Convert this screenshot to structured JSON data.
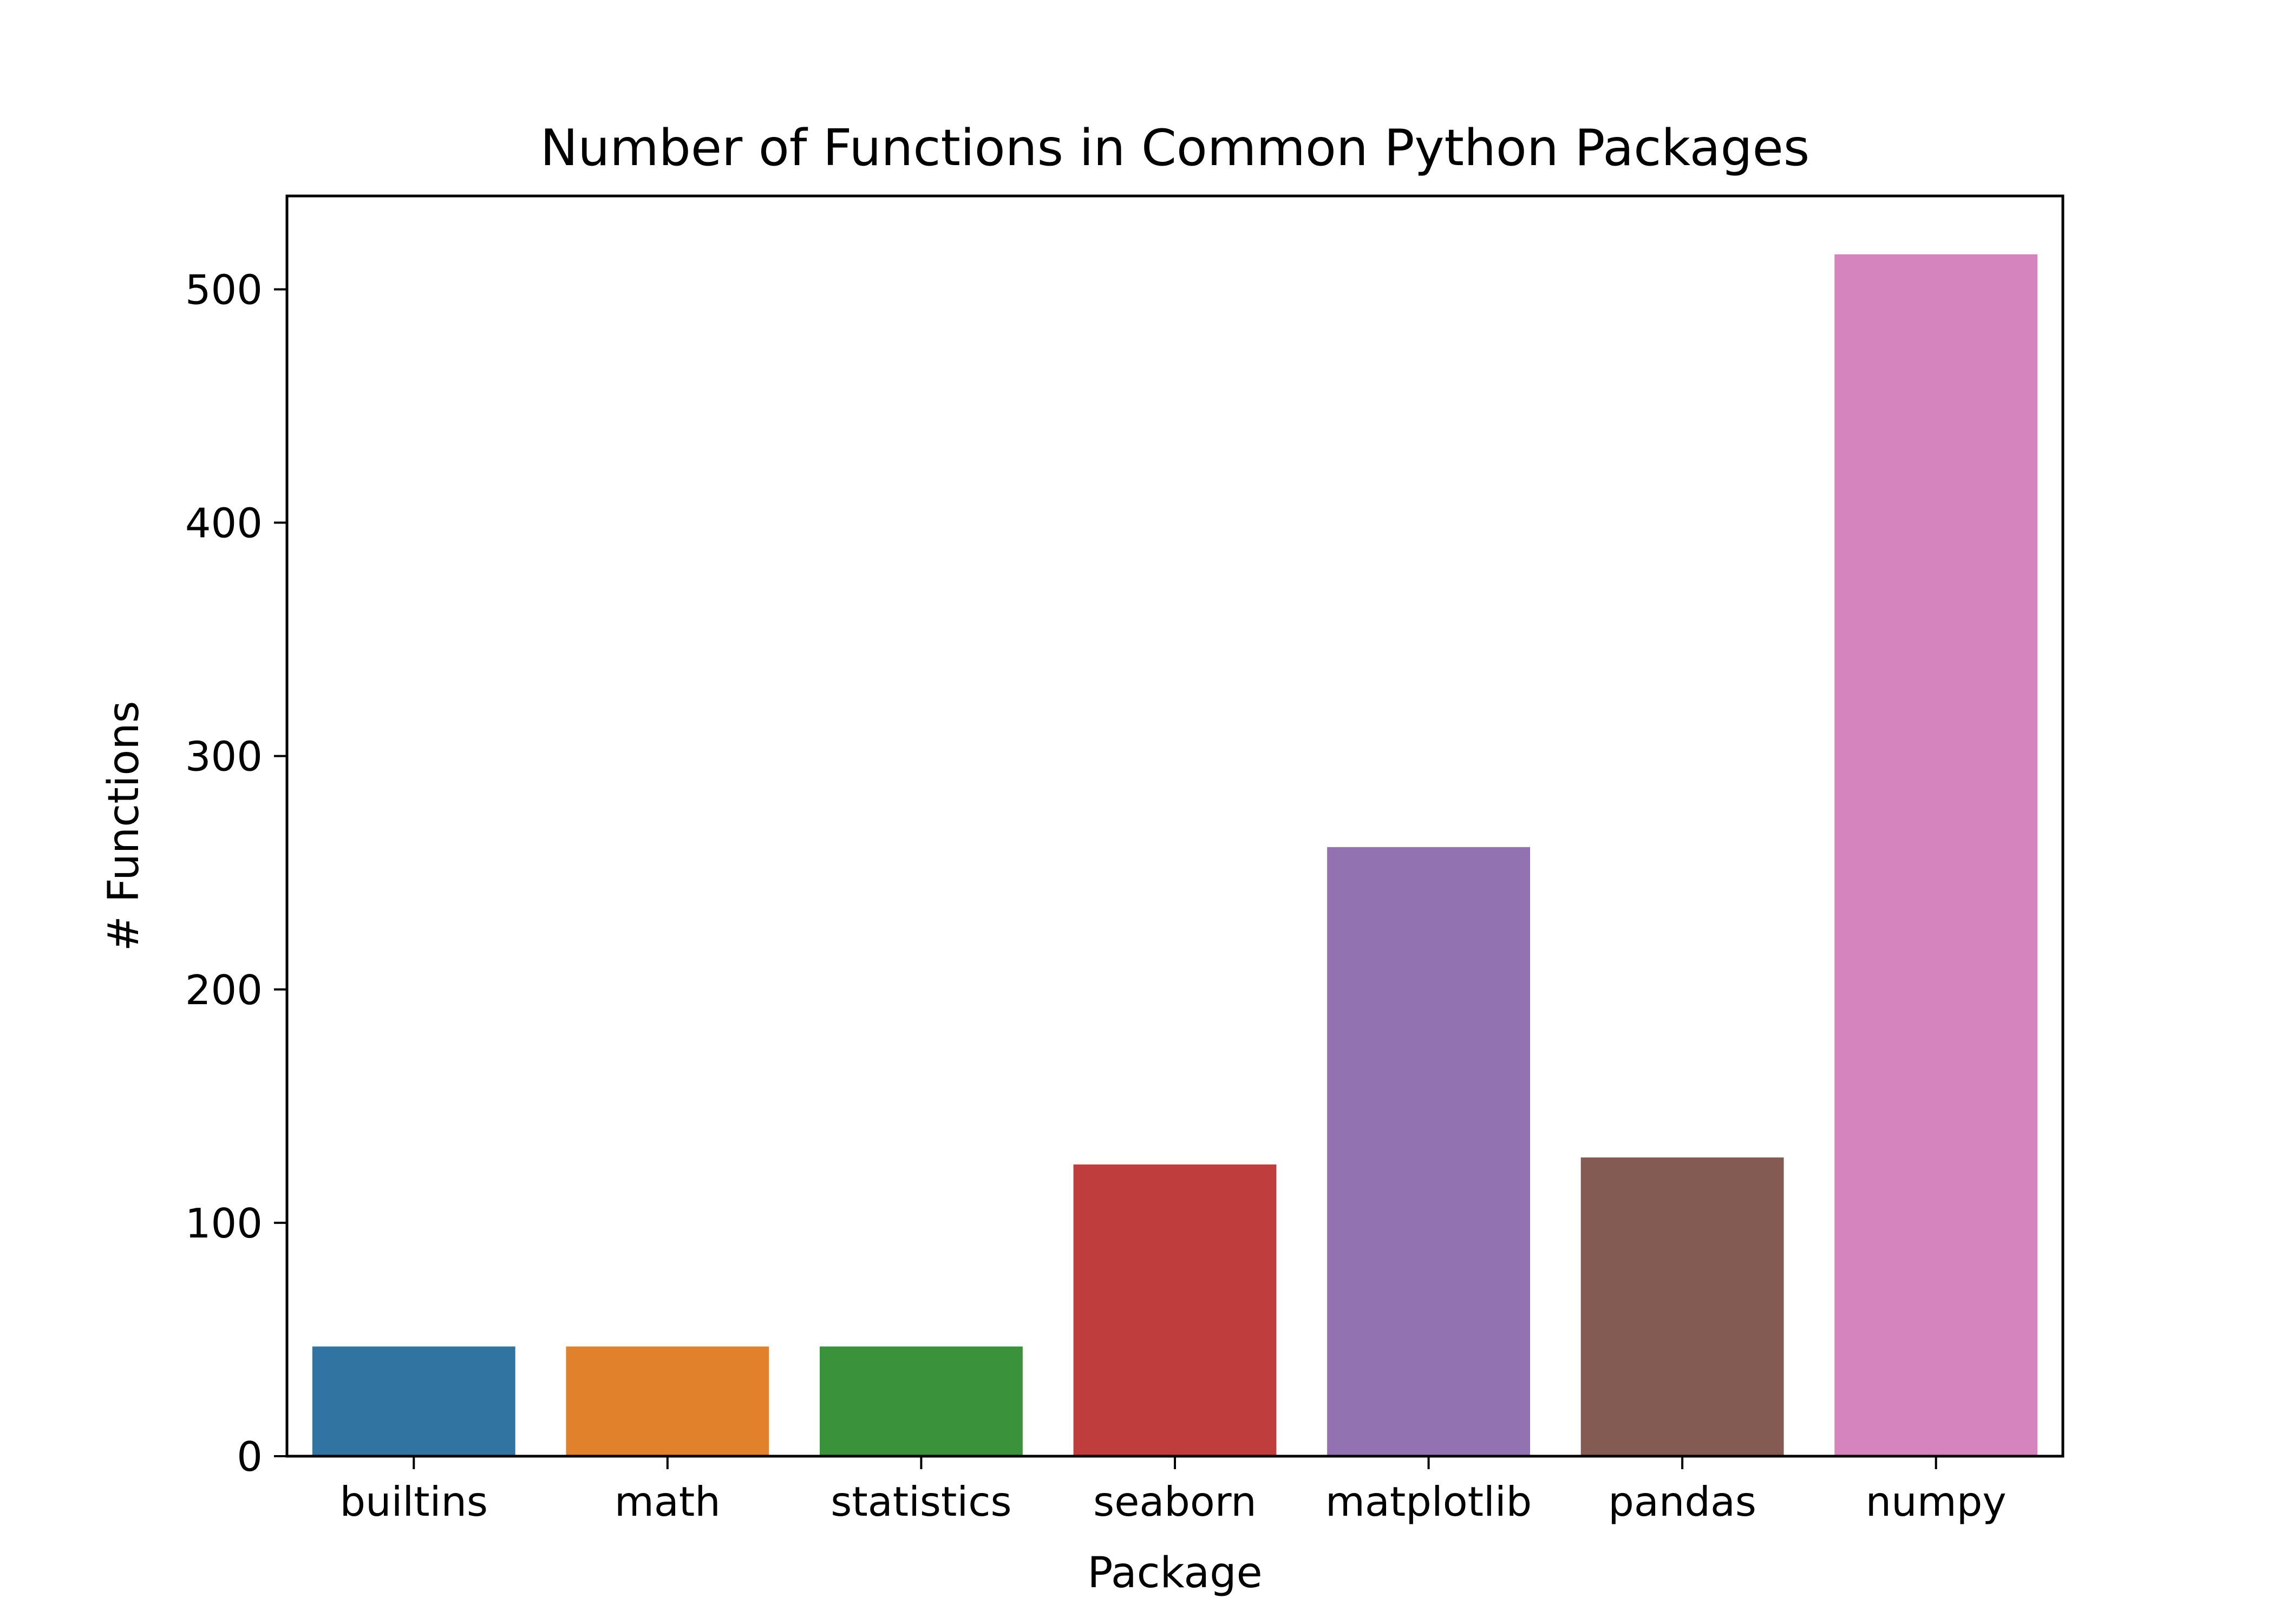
{
  "chart_data": {
    "type": "bar",
    "title": "Number of Functions in Common Python Packages",
    "xlabel": "Package",
    "ylabel": "# Functions",
    "categories": [
      "builtins",
      "math",
      "statistics",
      "seaborn",
      "matplotlib",
      "pandas",
      "numpy"
    ],
    "values": [
      47,
      47,
      47,
      125,
      261,
      128,
      515
    ],
    "colors": [
      "#3274a1",
      "#e1812c",
      "#3a923a",
      "#c03d3e",
      "#9372b2",
      "#845b53",
      "#d684bd"
    ],
    "ylim": [
      0,
      540
    ],
    "yticks": [
      0,
      100,
      200,
      300,
      400,
      500
    ],
    "grid": false,
    "legend": "none"
  }
}
